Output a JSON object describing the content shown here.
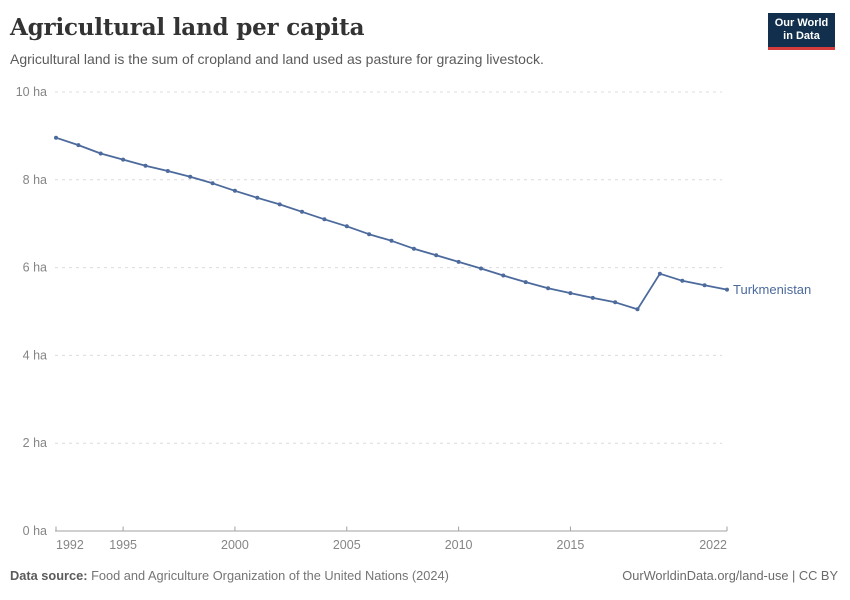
{
  "header": {
    "title": "Agricultural land per capita",
    "subtitle": "Agricultural land is the sum of cropland and land used as pasture for grazing livestock.",
    "logo": {
      "line1": "Our World",
      "line2": "in Data"
    }
  },
  "footer": {
    "datasource_label": "Data source:",
    "datasource_text": " Food and Agriculture Organization of the United Nations (2024)",
    "credit": "OurWorldinData.org/land-use | CC BY"
  },
  "colors": {
    "line": "#4C6A9C",
    "entity_label": "#4C6A9C",
    "grid": "#dcdcdc",
    "axis": "#a1a1a1",
    "tick_label": "#858585",
    "logo_bg": "#12304d",
    "logo_red": "#d73c3c"
  },
  "chart_data": {
    "type": "line",
    "title": "Agricultural land per capita",
    "unit": "ha",
    "grid": "horizontal-dashed",
    "legend": "end-of-line-label",
    "xlim": [
      1992,
      2022
    ],
    "ylim": [
      0,
      10
    ],
    "xticks": [
      1992,
      1995,
      2000,
      2005,
      2010,
      2015,
      2022
    ],
    "yticks": [
      0,
      2,
      4,
      6,
      8,
      10
    ],
    "ytick_suffix": " ha",
    "series": [
      {
        "name": "Turkmenistan",
        "x": [
          1992,
          1993,
          1994,
          1995,
          1996,
          1997,
          1998,
          1999,
          2000,
          2001,
          2002,
          2003,
          2004,
          2005,
          2006,
          2007,
          2008,
          2009,
          2010,
          2011,
          2012,
          2013,
          2014,
          2015,
          2016,
          2017,
          2018,
          2019,
          2020,
          2021,
          2022
        ],
        "values": [
          8.96,
          8.79,
          8.6,
          8.46,
          8.32,
          8.2,
          8.07,
          7.92,
          7.75,
          7.59,
          7.44,
          7.27,
          7.1,
          6.94,
          6.76,
          6.61,
          6.43,
          6.28,
          6.13,
          5.98,
          5.82,
          5.67,
          5.53,
          5.42,
          5.31,
          5.21,
          5.05,
          5.86,
          5.7,
          5.6,
          5.5
        ]
      }
    ]
  }
}
